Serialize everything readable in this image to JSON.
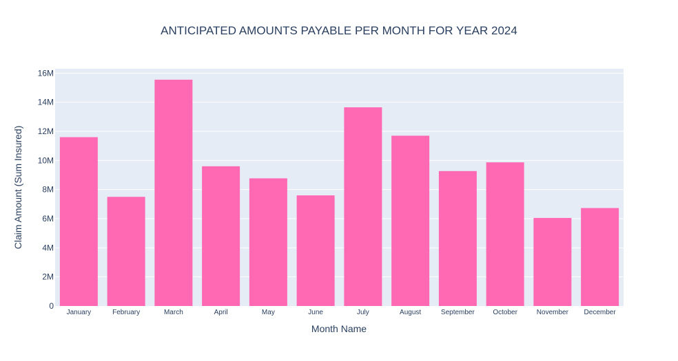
{
  "chart_data": {
    "type": "bar",
    "title": "ANTICIPATED AMOUNTS PAYABLE PER MONTH FOR YEAR 2024",
    "xlabel": "Month Name",
    "ylabel": "Claim Amount (Sum Insured)",
    "categories": [
      "January",
      "February",
      "March",
      "April",
      "May",
      "June",
      "July",
      "August",
      "September",
      "October",
      "November",
      "December"
    ],
    "values": [
      11600000,
      7500000,
      15550000,
      9600000,
      8770000,
      7600000,
      13650000,
      11700000,
      9270000,
      9870000,
      6050000,
      6730000
    ],
    "ylim": [
      0,
      16300000
    ],
    "yticks": [
      0,
      2000000,
      4000000,
      6000000,
      8000000,
      10000000,
      12000000,
      14000000,
      16000000
    ],
    "ytick_labels": [
      "0",
      "2M",
      "4M",
      "6M",
      "8M",
      "10M",
      "12M",
      "14M",
      "16M"
    ],
    "grid": true,
    "legend": "none",
    "colors": {
      "bar": "#ff69b4",
      "plot_background": "#e5ecf6",
      "gridline": "#ffffff",
      "text": "#2a3f5f"
    }
  }
}
